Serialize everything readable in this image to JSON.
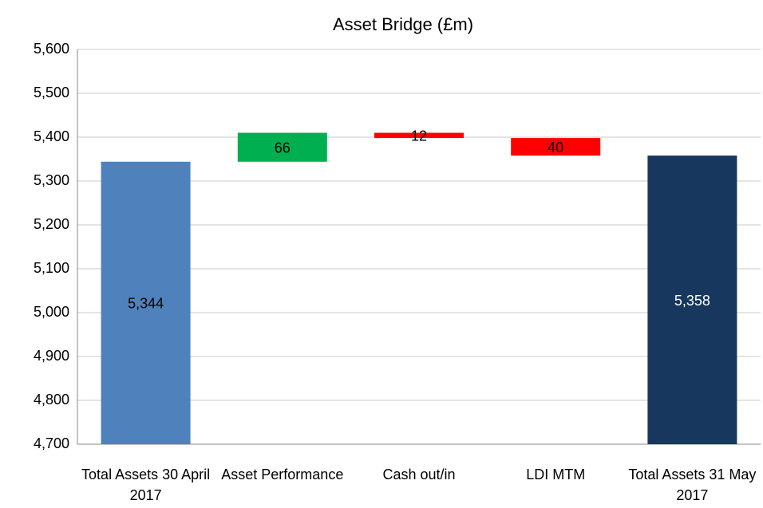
{
  "chart_data": {
    "type": "waterfall",
    "title": "Asset Bridge (£m)",
    "categories": [
      "Total Assets 30 April 2017",
      "Asset Performance",
      "Cash out/in",
      "LDI MTM",
      "Total Assets 31 May 2017"
    ],
    "values": [
      5344,
      66,
      -12,
      -40,
      5358
    ],
    "value_labels": [
      "5,344",
      "66",
      "12",
      "40",
      "5,358"
    ],
    "colors": [
      "#4f81bd",
      "#00b050",
      "#ff0000",
      "#ff0000",
      "#17375e"
    ],
    "label_colors": [
      "#000000",
      "#000000",
      "#000000",
      "#000000",
      "#ffffff"
    ],
    "ylim": [
      4700,
      5600
    ],
    "yticks": [
      {
        "value": 4700,
        "label": "4,700"
      },
      {
        "value": 4800,
        "label": "4,800"
      },
      {
        "value": 4900,
        "label": "4,900"
      },
      {
        "value": 5000,
        "label": "5,000"
      },
      {
        "value": 5100,
        "label": "5,100"
      },
      {
        "value": 5200,
        "label": "5,200"
      },
      {
        "value": 5300,
        "label": "5,300"
      },
      {
        "value": 5400,
        "label": "5,400"
      },
      {
        "value": 5500,
        "label": "5,500"
      },
      {
        "value": 5600,
        "label": "5,600"
      }
    ],
    "grid": true
  }
}
